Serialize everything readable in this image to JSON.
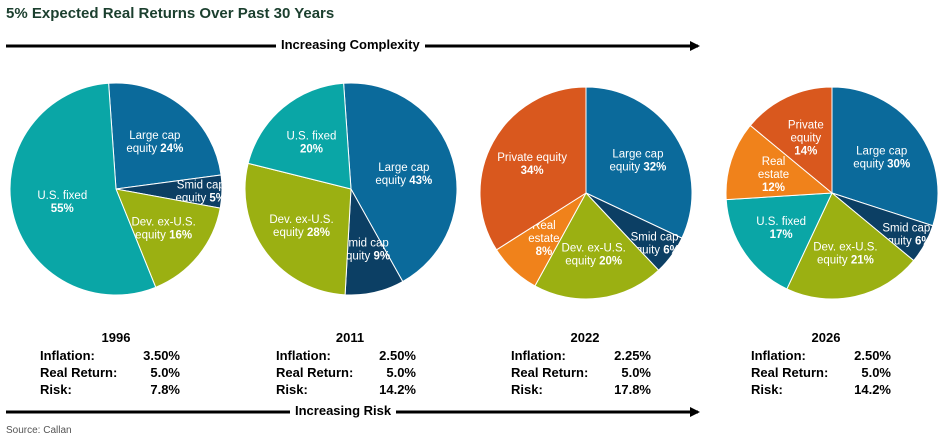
{
  "title": "5% Expected Real Returns Over Past 30 Years",
  "top_arrow_label": "Increasing Complexity",
  "bottom_arrow_label": "Increasing Risk",
  "source": "Source: Callan",
  "colors": {
    "Large cap equity": "#0b6a9b",
    "Smid cap equity": "#0c3f64",
    "Dev. ex-U.S. equity": "#9bb012",
    "U.S. fixed": "#0aa6a6",
    "Private equity": "#d9581e",
    "Real estate": "#f0821b"
  },
  "chart_data": [
    {
      "type": "pie",
      "year": "1996",
      "slices": [
        {
          "name": "Large cap equity",
          "value": 24,
          "label": [
            "Large cap",
            "equity "
          ],
          "pct": "24%"
        },
        {
          "name": "Smid cap equity",
          "value": 5,
          "label": [
            "Smid cap",
            "equity "
          ],
          "pct": "5%"
        },
        {
          "name": "Dev. ex-U.S. equity",
          "value": 16,
          "label": [
            "Dev. ex-U.S.",
            "equity "
          ],
          "pct": "16%"
        },
        {
          "name": "U.S. fixed",
          "value": 55,
          "label": [
            "U.S. fixed",
            ""
          ],
          "pct": "55%"
        }
      ],
      "stats": [
        {
          "label": "Inflation:",
          "value": "3.50%"
        },
        {
          "label": "Real Return:",
          "value": "5.0%"
        },
        {
          "label": "Risk:",
          "value": "7.8%"
        }
      ]
    },
    {
      "type": "pie",
      "year": "2011",
      "slices": [
        {
          "name": "Large cap equity",
          "value": 43,
          "label": [
            "Large cap",
            "equity "
          ],
          "pct": "43%"
        },
        {
          "name": "Smid cap equity",
          "value": 9,
          "label": [
            "Smid cap",
            "equity "
          ],
          "pct": "9%"
        },
        {
          "name": "Dev. ex-U.S. equity",
          "value": 28,
          "label": [
            "Dev. ex-U.S.",
            "equity "
          ],
          "pct": "28%"
        },
        {
          "name": "U.S. fixed",
          "value": 20,
          "label": [
            "U.S. fixed",
            ""
          ],
          "pct": "20%"
        }
      ],
      "stats": [
        {
          "label": "Inflation:",
          "value": "2.50%"
        },
        {
          "label": "Real Return:",
          "value": "5.0%"
        },
        {
          "label": "Risk:",
          "value": "14.2%"
        }
      ]
    },
    {
      "type": "pie",
      "year": "2022",
      "slices": [
        {
          "name": "Large cap equity",
          "value": 32,
          "label": [
            "Large cap",
            "equity "
          ],
          "pct": "32%"
        },
        {
          "name": "Smid cap equity",
          "value": 6,
          "label": [
            "Smid cap",
            "equity "
          ],
          "pct": "6%"
        },
        {
          "name": "Dev. ex-U.S. equity",
          "value": 20,
          "label": [
            "Dev. ex-U.S.",
            "equity "
          ],
          "pct": "20%"
        },
        {
          "name": "Real estate",
          "value": 8,
          "label": [
            "Real",
            "estate"
          ],
          "pct": "8%"
        },
        {
          "name": "Private equity",
          "value": 34,
          "label": [
            "Private equity",
            ""
          ],
          "pct": "34%"
        }
      ],
      "stats": [
        {
          "label": "Inflation:",
          "value": "2.25%"
        },
        {
          "label": "Real Return:",
          "value": "5.0%"
        },
        {
          "label": "Risk:",
          "value": "17.8%"
        }
      ]
    },
    {
      "type": "pie",
      "year": "2026",
      "slices": [
        {
          "name": "Large cap equity",
          "value": 30,
          "label": [
            "Large cap",
            "equity "
          ],
          "pct": "30%"
        },
        {
          "name": "Smid cap equity",
          "value": 6,
          "label": [
            "Smid cap",
            "equity "
          ],
          "pct": "6%"
        },
        {
          "name": "Dev. ex-U.S. equity",
          "value": 21,
          "label": [
            "Dev. ex-U.S.",
            "equity "
          ],
          "pct": "21%"
        },
        {
          "name": "U.S. fixed",
          "value": 17,
          "label": [
            "U.S. fixed",
            ""
          ],
          "pct": "17%"
        },
        {
          "name": "Real estate",
          "value": 12,
          "label": [
            "Real",
            "estate"
          ],
          "pct": "12%"
        },
        {
          "name": "Private equity",
          "value": 14,
          "label": [
            "Private",
            "equity"
          ],
          "pct": "14%"
        }
      ],
      "stats": [
        {
          "label": "Inflation:",
          "value": "2.50%"
        },
        {
          "label": "Real Return:",
          "value": "5.0%"
        },
        {
          "label": "Risk:",
          "value": "14.2%"
        }
      ]
    }
  ]
}
